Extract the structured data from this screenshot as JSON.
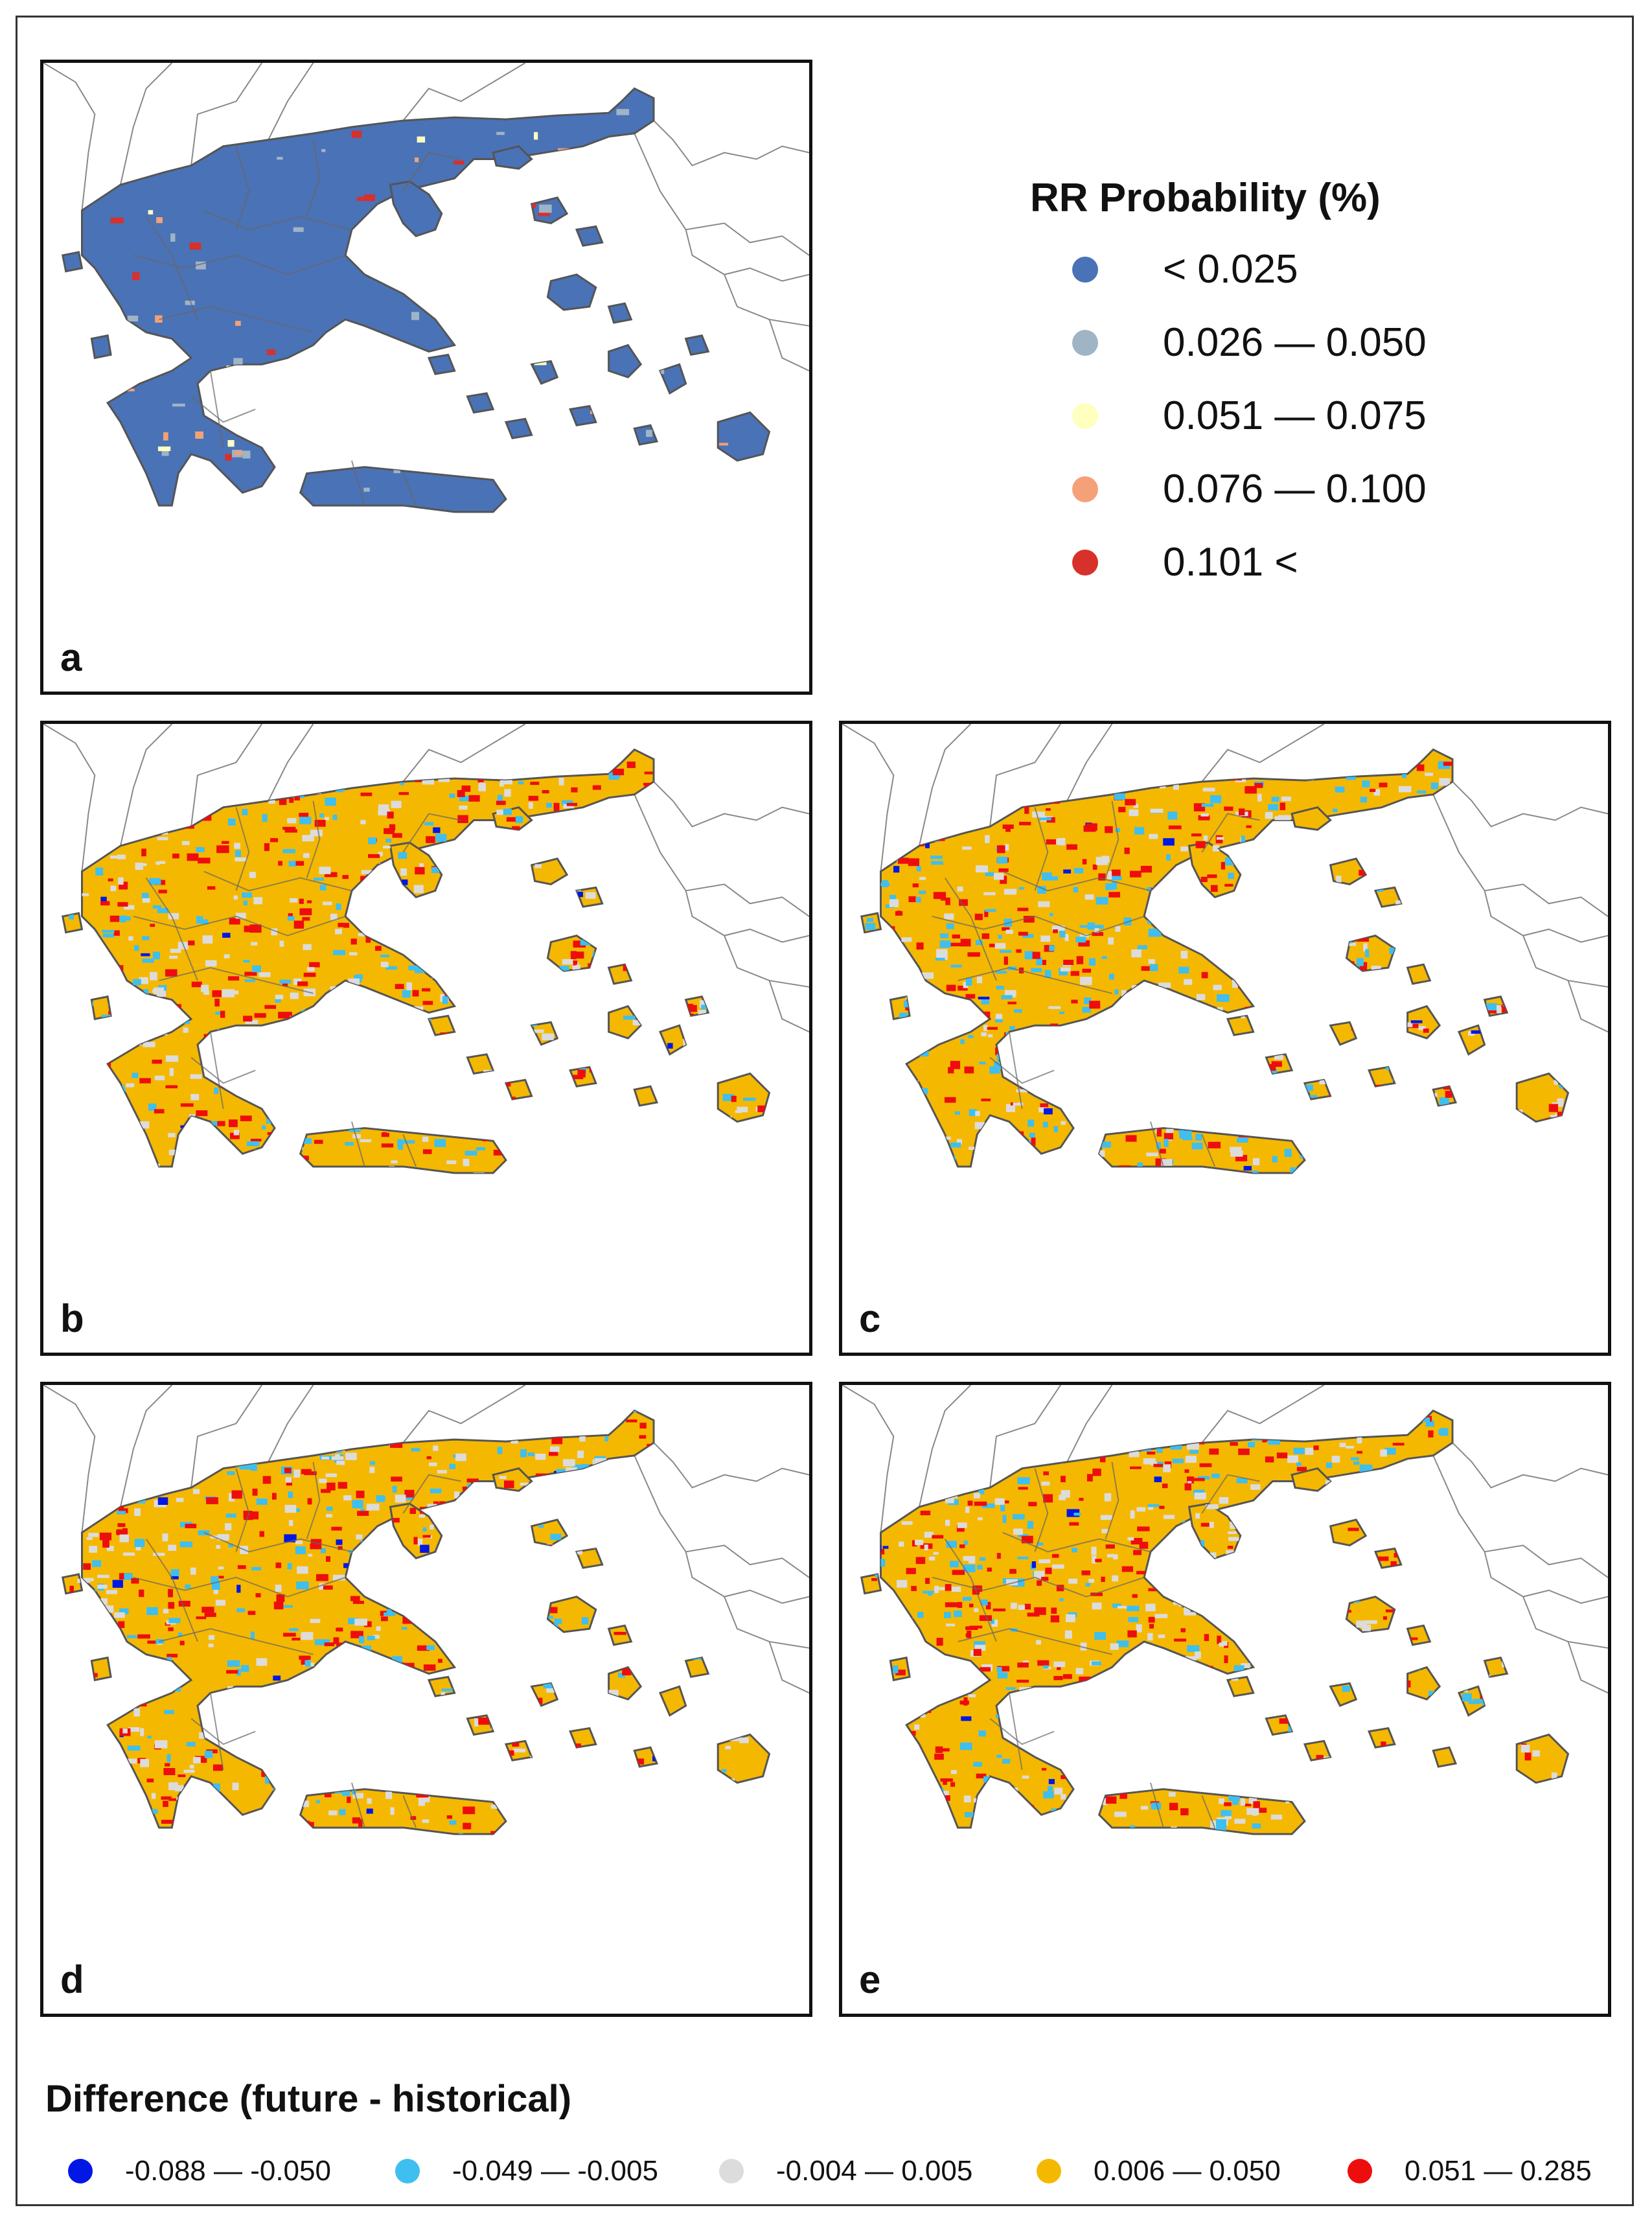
{
  "legend_probability": {
    "title": "RR Probability (%)",
    "classes": [
      {
        "label": "< 0.025",
        "color": "#4a72b6"
      },
      {
        "label": "0.026 — 0.050",
        "color": "#9fb4c5"
      },
      {
        "label": "0.051 — 0.075",
        "color": "#ffffc0"
      },
      {
        "label": "0.076 — 0.100",
        "color": "#f4a178"
      },
      {
        "label": "0.101 <",
        "color": "#d8302a"
      }
    ]
  },
  "legend_difference": {
    "title": "Difference (future - historical)",
    "classes": [
      {
        "label": "-0.088 — -0.050",
        "color": "#0017e6"
      },
      {
        "label": "-0.049 — -0.005",
        "color": "#3ebfef"
      },
      {
        "label": "-0.004 — 0.005",
        "color": "#dcdcdc"
      },
      {
        "label": "0.006 — 0.050",
        "color": "#f5b800"
      },
      {
        "label": "0.051 — 0.285",
        "color": "#ee0d0d"
      }
    ]
  },
  "panels": {
    "a": {
      "letter": "a",
      "map": "probability"
    },
    "b": {
      "letter": "b",
      "map": "difference"
    },
    "c": {
      "letter": "c",
      "map": "difference"
    },
    "d": {
      "letter": "d",
      "map": "difference"
    },
    "e": {
      "letter": "e",
      "map": "difference"
    }
  }
}
